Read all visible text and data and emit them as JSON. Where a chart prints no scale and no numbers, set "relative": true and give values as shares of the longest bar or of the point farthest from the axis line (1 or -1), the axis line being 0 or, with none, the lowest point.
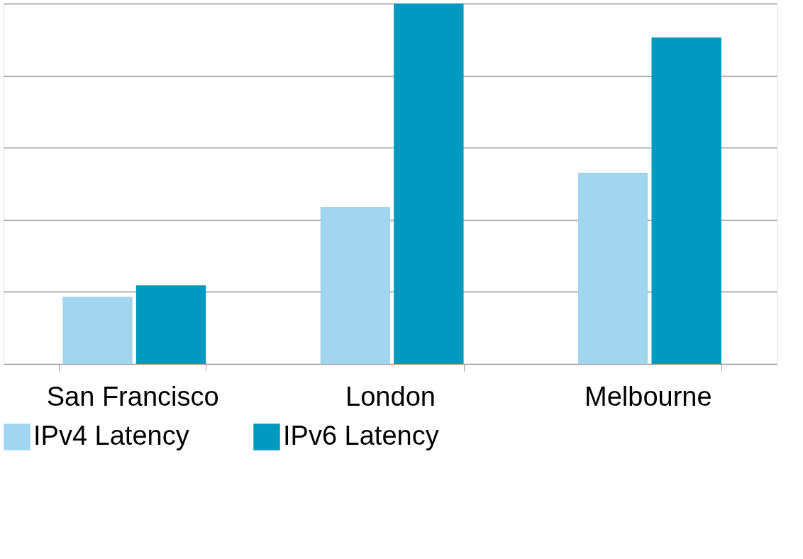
{
  "chart_data": {
    "type": "bar",
    "relative": true,
    "categories": [
      "San Francisco",
      "London",
      "Melbourne"
    ],
    "series": [
      {
        "name": "IPv4 Latency",
        "color": "#a2d5ee",
        "values": [
          0.186,
          0.435,
          0.53
        ]
      },
      {
        "name": "IPv6 Latency",
        "color": "#0099c0",
        "values": [
          0.218,
          1,
          0.906
        ]
      }
    ],
    "grid": "y",
    "legend": "bottom"
  }
}
